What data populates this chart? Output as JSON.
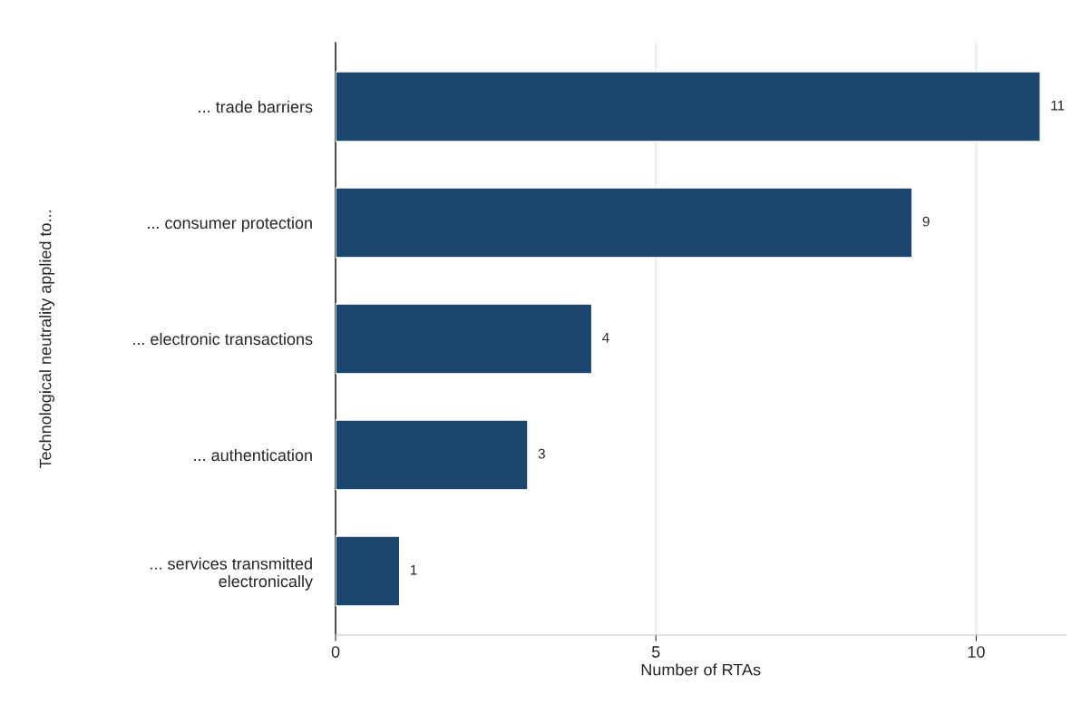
{
  "chart_data": {
    "type": "bar",
    "orientation": "horizontal",
    "categories": [
      "... trade barriers",
      "... consumer protection",
      "... electronic transactions",
      "... authentication",
      "... services transmitted\nelectronically"
    ],
    "values": [
      11,
      9,
      4,
      3,
      1
    ],
    "color": "#1d476f",
    "xlabel": "Number of RTAs",
    "ylabel": "Technological neutrality applied to...",
    "xlim": [
      0,
      11.4
    ],
    "xticks": [
      0,
      5,
      10
    ],
    "grid": "x",
    "legend": false,
    "data_labels": true
  }
}
